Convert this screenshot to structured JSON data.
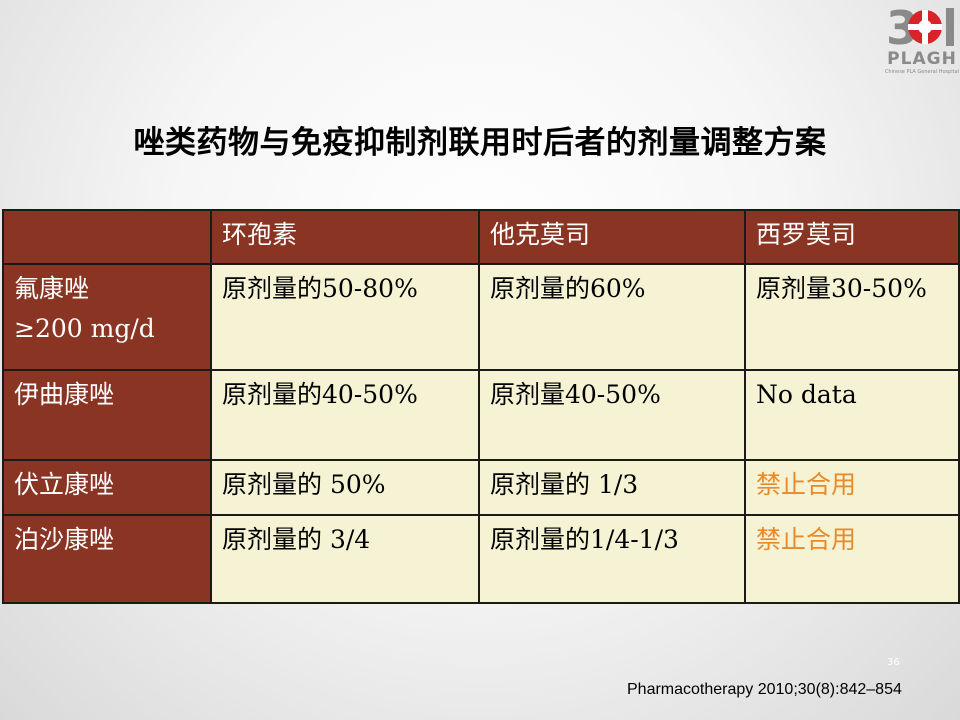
{
  "logo": {
    "number": "301",
    "name": "PLAGH",
    "subtitle": "Chinese PLA General Hospital",
    "colors": {
      "red": "#d8232a",
      "gray": "#8a8a8a"
    }
  },
  "title": "唑类药物与免疫抑制剂联用时后者的剂量调整方案",
  "table": {
    "headers": [
      "",
      "环孢素",
      "他克莫司",
      "西罗莫司"
    ],
    "rows": [
      {
        "head": [
          "氟康唑",
          "≥200 mg/d"
        ],
        "cells": [
          "原剂量的50-80%",
          "原剂量的60%",
          "原剂量30-50%"
        ]
      },
      {
        "head": [
          "伊曲康唑"
        ],
        "cells": [
          "原剂量的40-50%",
          "原剂量40-50%",
          "No data"
        ]
      },
      {
        "head": [
          "伏立康唑"
        ],
        "cells": [
          "原剂量的 50%",
          "原剂量的 1/3",
          "禁止合用"
        ]
      },
      {
        "head": [
          "泊沙康唑"
        ],
        "cells": [
          "原剂量的 3/4",
          "原剂量的1/4-1/3",
          "禁止合用"
        ]
      }
    ],
    "colors": {
      "header_bg": "#8a3423",
      "cell_bg": "#f5f3d4",
      "warning_text": "#e8892a"
    }
  },
  "page_number": "36",
  "citation": "Pharmacotherapy 2010;30(8):842–854"
}
